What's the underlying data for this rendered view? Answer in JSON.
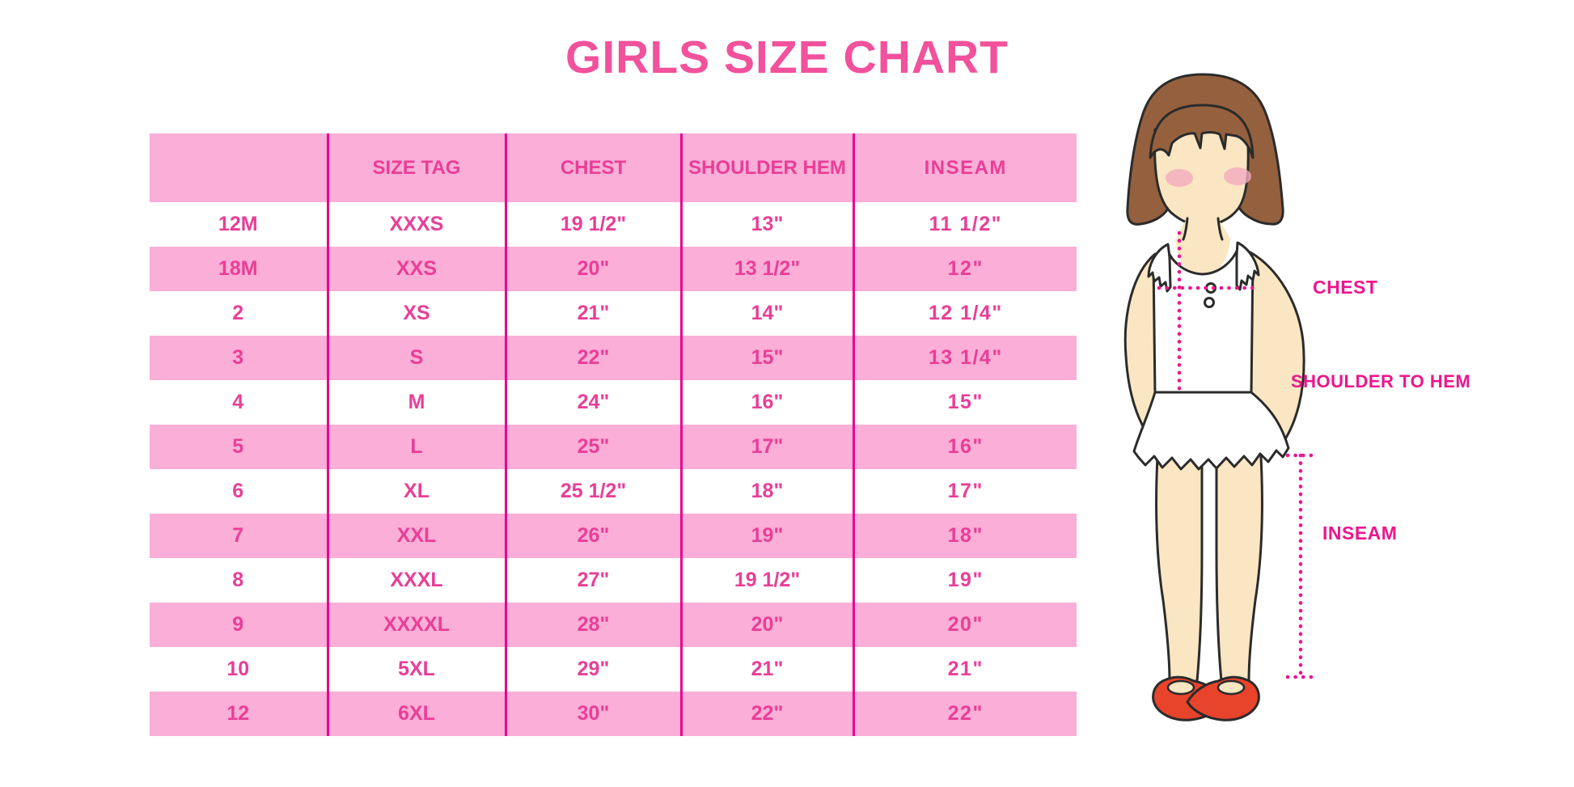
{
  "chart_data": {
    "type": "table",
    "title": "GIRLS SIZE CHART",
    "columns": [
      "",
      "SIZE TAG",
      "CHEST",
      "SHOULDER HEM",
      "INSEAM"
    ],
    "rows": [
      [
        "12M",
        "XXXS",
        "19 1/2\"",
        "13\"",
        "11 1/2\""
      ],
      [
        "18M",
        "XXS",
        "20\"",
        "13 1/2\"",
        "12\""
      ],
      [
        "2",
        "XS",
        "21\"",
        "14\"",
        "12 1/4\""
      ],
      [
        "3",
        "S",
        "22\"",
        "15\"",
        "13 1/4\""
      ],
      [
        "4",
        "M",
        "24\"",
        "16\"",
        "15\""
      ],
      [
        "5",
        "L",
        "25\"",
        "17\"",
        "16\""
      ],
      [
        "6",
        "XL",
        "25 1/2\"",
        "18\"",
        "17\""
      ],
      [
        "7",
        "XXL",
        "26\"",
        "19\"",
        "18\""
      ],
      [
        "8",
        "XXXL",
        "27\"",
        "19 1/2\"",
        "19\""
      ],
      [
        "9",
        "XXXXL",
        "28\"",
        "20\"",
        "20\""
      ],
      [
        "10",
        "5XL",
        "29\"",
        "21\"",
        "21\""
      ],
      [
        "12",
        "6XL",
        "30\"",
        "22\"",
        "22\""
      ]
    ],
    "layout": {
      "row_stripes": [
        "white",
        "pink"
      ],
      "grid": "vertical-dividers-only"
    }
  },
  "figure": {
    "description_labels": {
      "chest": "CHEST",
      "shoulder_to_hem": "SHOULDER TO HEM",
      "inseam": "INSEAM"
    }
  },
  "colors": {
    "row_pink": "#FBAED7",
    "divider_magenta": "#E60690",
    "table_text_pink": "#E93E97",
    "title_pink": "#F2519C",
    "annotation_magenta": "#EC168D",
    "shoe_red": "#E8432B",
    "hair_brown": "#95603E",
    "skin": "#FAE6C2"
  }
}
